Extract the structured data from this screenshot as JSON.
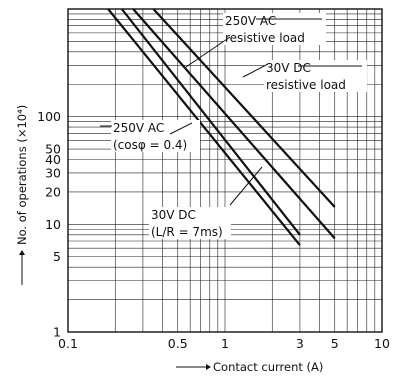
{
  "chart_data": {
    "type": "line",
    "title": "",
    "xlabel": "Contact current (A)",
    "ylabel": "No. of operations (×10⁴)",
    "x_scale": "log",
    "y_scale": "log",
    "xlim": [
      0.1,
      10
    ],
    "ylim": [
      1,
      1000
    ],
    "grid": true,
    "x_ticks": [
      {
        "value": 0.1,
        "label": "0.1"
      },
      {
        "value": 0.5,
        "label": "0.5"
      },
      {
        "value": 1,
        "label": "1"
      },
      {
        "value": 3,
        "label": "3"
      },
      {
        "value": 5,
        "label": "5"
      },
      {
        "value": 10,
        "label": "10"
      }
    ],
    "y_ticks": [
      {
        "value": 1,
        "label": "1"
      },
      {
        "value": 5,
        "label": "5"
      },
      {
        "value": 10,
        "label": "10"
      },
      {
        "value": 20,
        "label": "20"
      },
      {
        "value": 30,
        "label": "30"
      },
      {
        "value": 40,
        "label": "40"
      },
      {
        "value": 50,
        "label": "50"
      },
      {
        "value": 100,
        "label": "100"
      }
    ],
    "series": [
      {
        "name": "30V DC (L/R = 7ms)",
        "x": [
          0.18,
          3
        ],
        "y": [
          1000,
          6.4
        ]
      },
      {
        "name": "250V AC (cosφ = 0.4)",
        "x": [
          0.22,
          3
        ],
        "y": [
          1000,
          8
        ]
      },
      {
        "name": "250V AC resistive load",
        "x": [
          0.26,
          5
        ],
        "y": [
          1000,
          7.4
        ]
      },
      {
        "name": "30V DC resistive load",
        "x": [
          0.35,
          5
        ],
        "y": [
          1000,
          14.5
        ]
      }
    ],
    "annotations": [
      {
        "lines": [
          "250V AC",
          "resistive load"
        ],
        "target": 2
      },
      {
        "lines": [
          "30V DC",
          "resistive load"
        ],
        "target": 3
      },
      {
        "lines": [
          "250V AC",
          "(cosφ = 0.4)"
        ],
        "target": 1
      },
      {
        "lines": [
          "30V DC",
          "(L/R = 7ms)"
        ],
        "target": 0
      }
    ]
  }
}
